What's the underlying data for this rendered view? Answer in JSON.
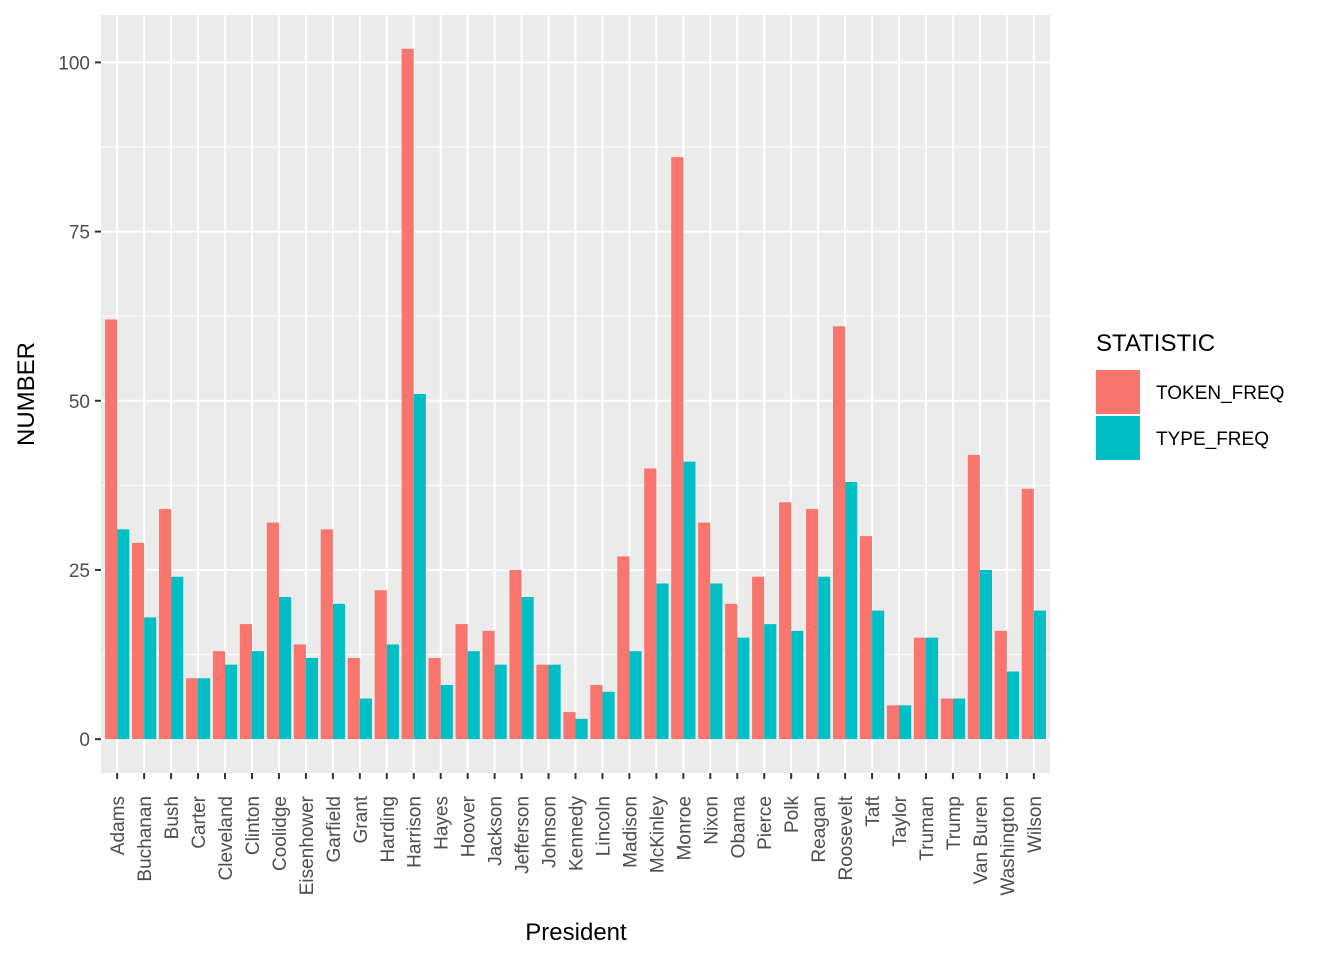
{
  "chart_data": {
    "type": "bar",
    "xlabel": "President",
    "ylabel": "NUMBER",
    "ylim": [
      -5,
      107
    ],
    "y_ticks": [
      0,
      25,
      50,
      75,
      100
    ],
    "grid": true,
    "legend_position": "right",
    "legend_title": "STATISTIC",
    "categories": [
      "Adams",
      "Buchanan",
      "Bush",
      "Carter",
      "Cleveland",
      "Clinton",
      "Coolidge",
      "Eisenhower",
      "Garfield",
      "Grant",
      "Harding",
      "Harrison",
      "Hayes",
      "Hoover",
      "Jackson",
      "Jefferson",
      "Johnson",
      "Kennedy",
      "Lincoln",
      "Madison",
      "McKinley",
      "Monroe",
      "Nixon",
      "Obama",
      "Pierce",
      "Polk",
      "Reagan",
      "Roosevelt",
      "Taft",
      "Taylor",
      "Truman",
      "Trump",
      "Van Buren",
      "Washington",
      "Wilson"
    ],
    "series": [
      {
        "name": "TOKEN_FREQ",
        "color": "#F8766D",
        "values": [
          62,
          29,
          34,
          9,
          13,
          17,
          32,
          14,
          31,
          12,
          22,
          102,
          12,
          17,
          16,
          25,
          11,
          4,
          8,
          27,
          40,
          86,
          32,
          20,
          24,
          35,
          34,
          61,
          30,
          5,
          15,
          6,
          42,
          16,
          37
        ]
      },
      {
        "name": "TYPE_FREQ",
        "color": "#00BFC4",
        "values": [
          31,
          18,
          24,
          9,
          11,
          13,
          21,
          12,
          20,
          6,
          14,
          51,
          8,
          13,
          11,
          21,
          11,
          3,
          7,
          13,
          23,
          41,
          23,
          15,
          17,
          16,
          24,
          38,
          19,
          5,
          15,
          6,
          25,
          10,
          19
        ]
      }
    ]
  },
  "colors": {
    "panel_background": "#EBEBEB",
    "grid": "#FFFFFF"
  }
}
